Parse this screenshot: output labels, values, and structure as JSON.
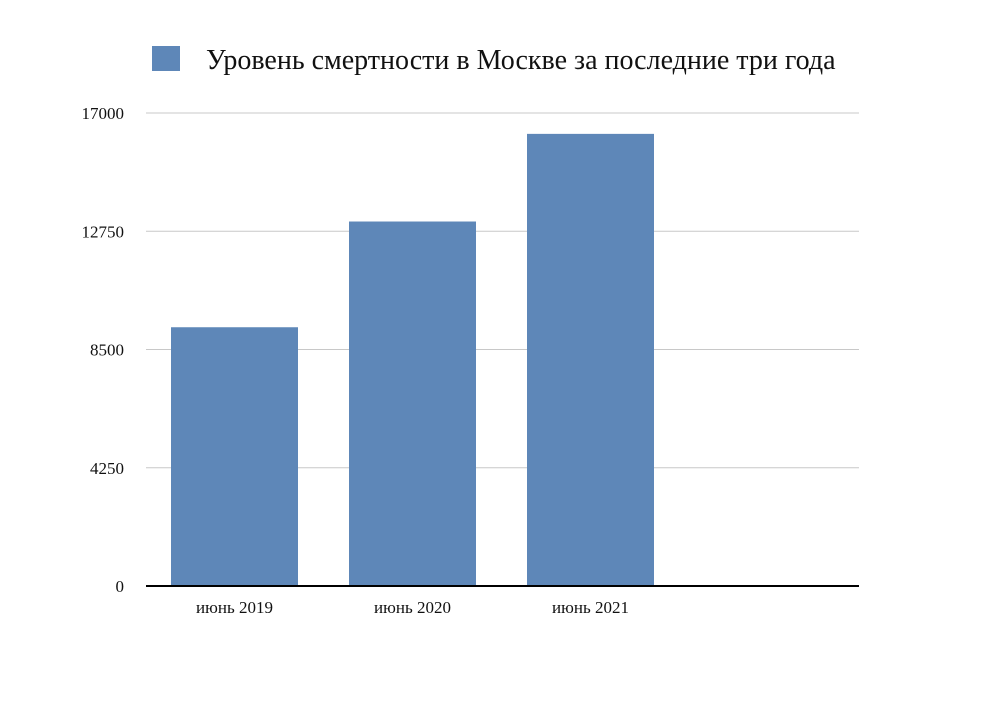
{
  "chart_data": {
    "type": "bar",
    "categories": [
      "июнь 2019",
      "июнь 2020",
      "июнь 2021"
    ],
    "series": [
      {
        "name": "Уровень смертности в Москве за последние три года",
        "values": [
          9300,
          13100,
          16250
        ]
      }
    ],
    "ylim": [
      0,
      17000
    ],
    "yticks": [
      "0",
      "4250",
      "8500",
      "12750",
      "17000"
    ],
    "ytick_values": [
      0,
      4250,
      8500,
      12750,
      17000
    ],
    "grid": true,
    "legend_position": "top",
    "colors": {
      "bar": "#5e87b8",
      "grid": "#c8c8c8",
      "axis": "#000000"
    }
  }
}
